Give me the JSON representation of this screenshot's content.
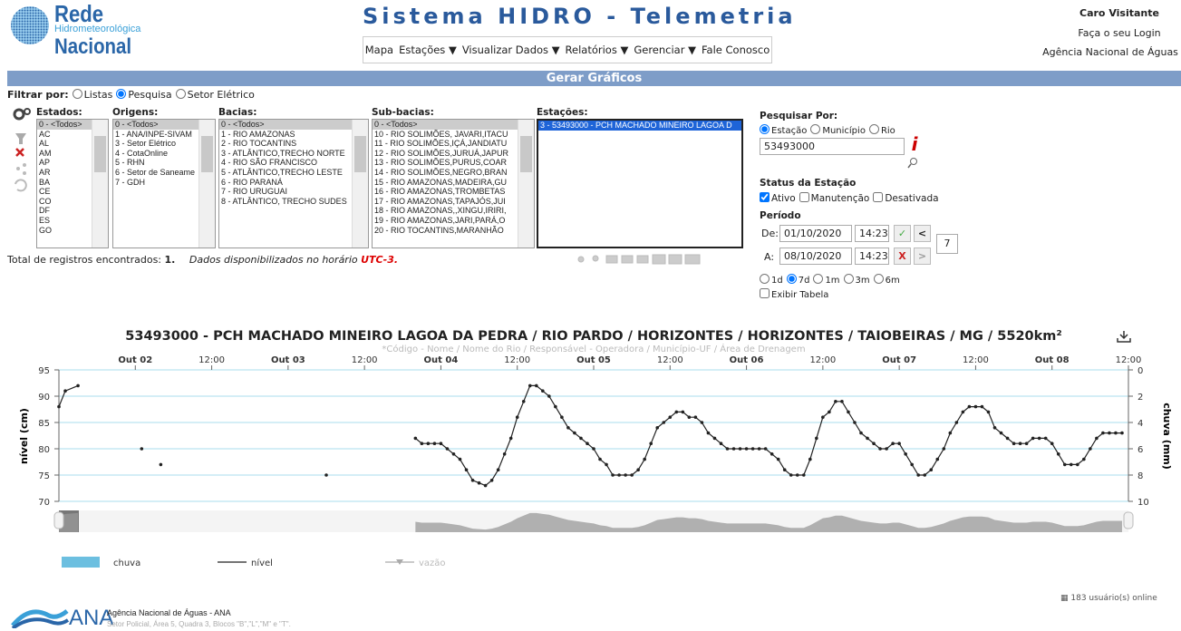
{
  "header": {
    "logo": [
      "Rede",
      "Hidrometeorológica",
      "Nacional"
    ],
    "title": "Sistema HIDRO - Telemetria",
    "menu": [
      "Mapa",
      "Estações ▼",
      "Visualizar Dados ▼",
      "Relatórios ▼",
      "Gerenciar ▼",
      "Fale Conosco"
    ],
    "user": [
      "Caro Visitante",
      "Faça o seu Login",
      "Agência Nacional de Águas"
    ]
  },
  "section_title": "Gerar Gráficos",
  "filter": {
    "label": "Filtrar por:",
    "options": [
      "Listas",
      "Pesquisa",
      "Setor Elétrico"
    ],
    "selected": 1
  },
  "lists": [
    {
      "label": "Estados:",
      "selected": 0,
      "items": [
        "0 - <Todos>",
        "AC",
        "AL",
        "AM",
        "AP",
        "AR",
        "BA",
        "CE",
        "CO",
        "DF",
        "ES",
        "GO"
      ]
    },
    {
      "label": "Origens:",
      "selected": 0,
      "items": [
        "0 - <Todos>",
        "1 - ANA/INPE-SIVAM",
        "3 - Setor Elétrico",
        "4 - CotaOnline",
        "5 - RHN",
        "6 - Setor de Saneame",
        "7 - GDH"
      ]
    },
    {
      "label": "Bacias:",
      "selected": 0,
      "items": [
        "0 - <Todos>",
        "1 - RIO AMAZONAS",
        "2 - RIO TOCANTINS",
        "3 - ATLÂNTICO,TRECHO NORTE",
        "4 - RIO SÃO FRANCISCO",
        "5 - ATLÂNTICO,TRECHO LESTE",
        "6 - RIO PARANÁ",
        "7 - RIO URUGUAI",
        "8 - ATLÂNTICO, TRECHO SUDES"
      ]
    },
    {
      "label": "Sub-bacias:",
      "selected": 0,
      "items": [
        "0 - <Todos>",
        "10 - RIO SOLIMÕES, JAVARI,ITACU",
        "11 - RIO SOLIMÕES,IÇÁ,JANDIATU",
        "12 - RIO SOLIMÕES,JURUÁ,JAPUR",
        "13 - RIO SOLIMÕES,PURUS,COAR",
        "14 - RIO SOLIMÕES,NEGRO,BRAN",
        "15 - RIO AMAZONAS,MADEIRA,GU",
        "16 - RIO AMAZONAS,TROMBETAS",
        "17 - RIO AMAZONAS,TAPAJÓS,JUI",
        "18 - RIO AMAZONAS,,XINGU,IRIRI,",
        "19 - RIO AMAZONAS,JARI,PARÁ,O",
        "20 - RIO TOCANTINS,MARANHÃO"
      ]
    },
    {
      "label": "Estações:",
      "selected": 0,
      "items": [
        "3 - 53493000 - PCH MACHADO MINEIRO LAGOA D"
      ]
    }
  ],
  "search": {
    "label": "Pesquisar Por:",
    "options": [
      "Estação",
      "Município",
      "Rio"
    ],
    "selected": 0,
    "value": "53493000"
  },
  "status": {
    "label": "Status da Estação",
    "options": [
      "Ativo",
      "Manutenção",
      "Desativada"
    ],
    "checked": [
      0
    ]
  },
  "period": {
    "label": "Período",
    "from_label": "De:",
    "from_date": "01/10/2020",
    "from_time": "14:23",
    "to_label": "A:",
    "to_date": "08/10/2020",
    "to_time": "14:23",
    "days": 7,
    "ranges": [
      "1d",
      "7d",
      "1m",
      "3m",
      "6m"
    ],
    "range_selected": 1,
    "table_label": "Exibir Tabela"
  },
  "summary": {
    "total_label": "Total de registros encontrados:",
    "total": "1.",
    "note": "Dados disponibilizados no horário",
    "timezone": "UTC-3."
  },
  "chart_data": {
    "type": "line",
    "title": "53493000 - PCH MACHADO MINEIRO LAGOA DA PEDRA / RIO PARDO / HORIZONTES / HORIZONTES / TAIOBEIRAS / MG / 5520km²",
    "subtitle": "*Código - Nome / Nome do Rio / Responsável - Operadora / Município-UF / Área de Drenagem",
    "y_label": "nível (cm)",
    "y2_label": "chuva (mm)",
    "xlim": [
      12,
      180
    ],
    "xticks": [
      {
        "value": 24,
        "label": "Out 02"
      },
      {
        "value": 36,
        "label": "12:00"
      },
      {
        "value": 48,
        "label": "Out 03"
      },
      {
        "value": 60,
        "label": "12:00"
      },
      {
        "value": 72,
        "label": "Out 04"
      },
      {
        "value": 84,
        "label": "12:00"
      },
      {
        "value": 96,
        "label": "Out 05"
      },
      {
        "value": 108,
        "label": "12:00"
      },
      {
        "value": 120,
        "label": "Out 06"
      },
      {
        "value": 132,
        "label": "12:00"
      },
      {
        "value": 144,
        "label": "Out 07"
      },
      {
        "value": 156,
        "label": "12:00"
      },
      {
        "value": 168,
        "label": "Out 08"
      },
      {
        "value": 180,
        "label": "12:00"
      }
    ],
    "ylim": [
      70,
      95
    ],
    "yticks": [
      70,
      75,
      80,
      85,
      90,
      95
    ],
    "y2lim": [
      0,
      10
    ],
    "y2ticks": [
      0,
      2,
      4,
      6,
      8,
      10
    ],
    "y2_reversed": true,
    "grid": true,
    "series": [
      {
        "name": "chuva",
        "color": "#6cbfe0",
        "axis": "y2"
      },
      {
        "name": "nível",
        "color": "#222222",
        "x": [
          12,
          13,
          15,
          20,
          25,
          26,
          28,
          40,
          54,
          60,
          68,
          69,
          70,
          71,
          72,
          73,
          74,
          75,
          76,
          77,
          78,
          79,
          80,
          81,
          82,
          83,
          84,
          85,
          86,
          87,
          88,
          89,
          90,
          91,
          92,
          93,
          94,
          95,
          96,
          97,
          98,
          99,
          100,
          101,
          102,
          103,
          104,
          105,
          106,
          107,
          108,
          109,
          110,
          111,
          112,
          113,
          114,
          115,
          116,
          117,
          118,
          119,
          120,
          121,
          122,
          123,
          124,
          125,
          126,
          127,
          128,
          129,
          130,
          131,
          132,
          133,
          134,
          135,
          136,
          137,
          138,
          139,
          140,
          141,
          142,
          143,
          144,
          145,
          146,
          147,
          148,
          149,
          150,
          151,
          152,
          153,
          154,
          155,
          156,
          157,
          158,
          159,
          160,
          161,
          162,
          163,
          164,
          165,
          166,
          167,
          168,
          169,
          170,
          171,
          172,
          173,
          174,
          175,
          176,
          177,
          178,
          179
        ],
        "values": [
          88,
          91,
          92,
          null,
          80,
          null,
          77,
          null,
          75,
          null,
          82,
          81,
          81,
          81,
          81,
          80,
          79,
          78,
          76,
          74,
          73.5,
          73,
          74,
          76,
          79,
          82,
          86,
          89,
          92,
          92,
          91,
          90,
          88,
          86,
          84,
          83,
          82,
          81,
          80,
          78,
          77,
          75,
          75,
          75,
          75,
          76,
          78,
          81,
          84,
          85,
          86,
          87,
          87,
          86,
          86,
          85,
          83,
          82,
          81,
          80,
          80,
          80,
          80,
          80,
          80,
          80,
          79,
          78,
          76,
          75,
          75,
          75,
          78,
          82,
          86,
          87,
          89,
          89,
          87,
          85,
          83,
          82,
          81,
          80,
          80,
          81,
          81,
          79,
          77,
          75,
          75,
          76,
          78,
          80,
          83,
          85,
          87,
          88,
          88,
          88,
          87,
          84,
          83,
          82,
          81,
          81,
          81,
          82,
          82,
          82,
          81,
          79,
          77,
          77,
          77,
          78,
          80,
          82,
          83,
          83,
          83,
          83
        ]
      },
      {
        "name": "vazão",
        "color": "#aaaaaa",
        "disabled": true
      }
    ]
  },
  "footer": {
    "logo": "ANA",
    "name": "Agência Nacional de Águas - ANA",
    "address": "Setor Policial, Área 5, Quadra 3, Blocos \"B\",\"L\",\"M\" e \"T\".",
    "online": "183 usuário(s) online"
  }
}
